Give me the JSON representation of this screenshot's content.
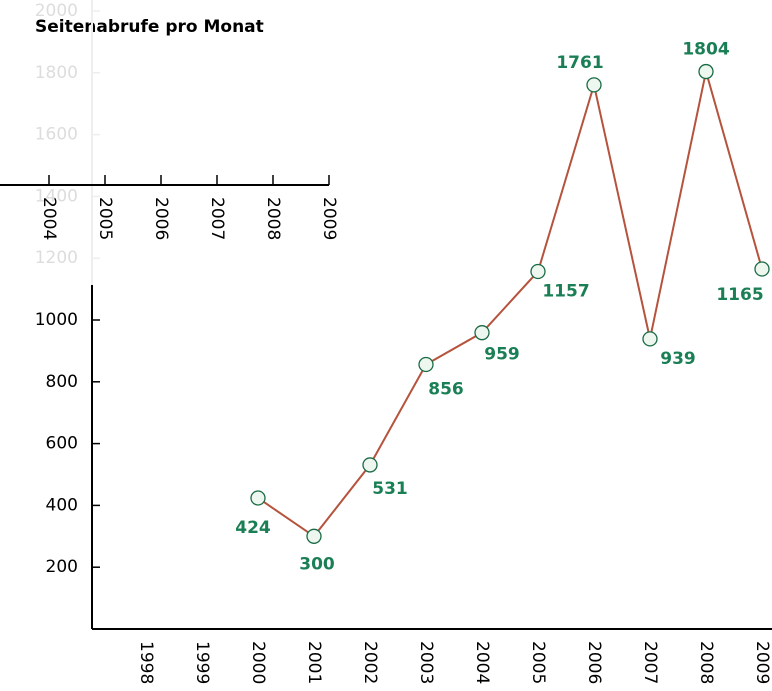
{
  "chart_data": {
    "type": "line",
    "title": "Seitenabrufe pro Monat",
    "categories": [
      "1998",
      "1999",
      "2000",
      "2001",
      "2002",
      "2003",
      "2004",
      "2005",
      "2006",
      "2007",
      "2008",
      "2009"
    ],
    "series": [
      {
        "name": "Seitenabrufe",
        "color": "#b5533c",
        "values": [
          null,
          null,
          424,
          300,
          531,
          856,
          959,
          1157,
          1761,
          939,
          1804,
          1165
        ]
      }
    ],
    "label_color": "#1a7f55",
    "ylim": [
      0,
      2000
    ],
    "yticks": [
      200,
      400,
      600,
      800,
      1000,
      1200,
      1400,
      1600,
      1800,
      2000
    ],
    "overlay_axis": {
      "categories": [
        "2004",
        "2005",
        "2006",
        "2007",
        "2008",
        "2009"
      ]
    }
  }
}
